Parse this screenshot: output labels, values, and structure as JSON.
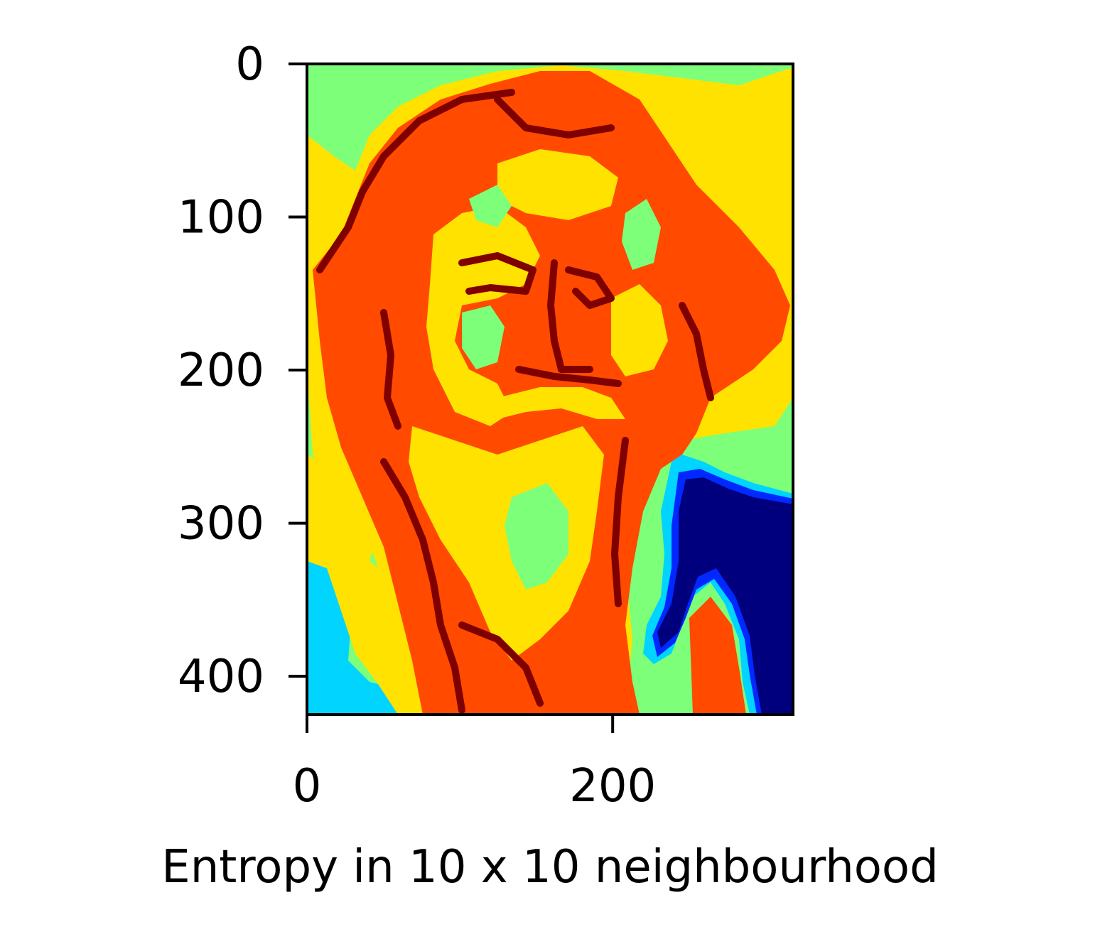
{
  "chart_data": {
    "type": "heatmap",
    "title": "",
    "xlabel": "Entropy in 10 x 10 neighbourhood",
    "ylabel": "",
    "colormap": "jet",
    "image_extent": {
      "x": [
        0,
        318
      ],
      "y": [
        0,
        425
      ]
    },
    "y_inverted": true,
    "xticks": [
      0,
      200
    ],
    "yticks": [
      0,
      100,
      200,
      300,
      400
    ],
    "xtick_labels": [
      "0",
      "200"
    ],
    "ytick_labels": [
      "0",
      "100",
      "200",
      "300",
      "400"
    ],
    "grid": false,
    "legend": "none",
    "colors": {
      "dark_red": "#7f0000",
      "red_orange": "#ff4a00",
      "yellow": "#ffe200",
      "light_green": "#7dff7a",
      "cyan": "#00d4ff",
      "blue": "#0028ff",
      "dark_blue": "#00007f"
    }
  }
}
